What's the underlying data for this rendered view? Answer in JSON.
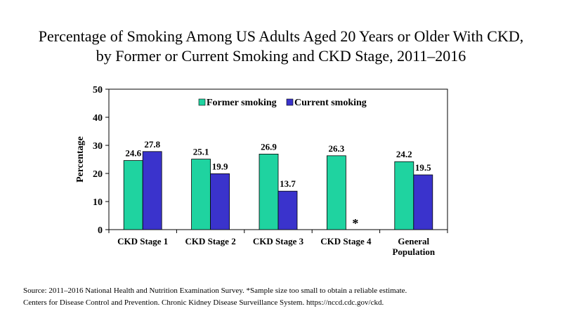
{
  "title": {
    "line1": "Percentage of Smoking Among US Adults Aged 20 Years or Older With CKD,",
    "line2": "by Former or Current Smoking and CKD Stage, 2011–2016"
  },
  "chart_data": {
    "type": "bar",
    "title": "Percentage of Smoking Among US Adults Aged 20 Years or Older With CKD, by Former or Current Smoking and CKD Stage, 2011–2016",
    "xlabel": "",
    "ylabel": "Percentage",
    "ylim": [
      0,
      50
    ],
    "yticks": [
      0,
      10,
      20,
      30,
      40,
      50
    ],
    "categories": [
      [
        "CKD Stage 1"
      ],
      [
        "CKD Stage 2"
      ],
      [
        "CKD Stage 3"
      ],
      [
        "CKD Stage 4"
      ],
      [
        "General",
        "Population"
      ]
    ],
    "series": [
      {
        "name": "Former smoking",
        "color": "#1fd3a0",
        "values": [
          24.6,
          25.1,
          26.9,
          26.3,
          24.2
        ],
        "labels": [
          "24.6",
          "25.1",
          "26.9",
          "26.3",
          "24.2"
        ]
      },
      {
        "name": "Current smoking",
        "color": "#3a33cc",
        "values": [
          27.8,
          19.9,
          13.7,
          null,
          19.5
        ],
        "labels": [
          "27.8",
          "19.9",
          "13.7",
          "*",
          "19.5"
        ]
      }
    ],
    "legend_position": "top-center",
    "grid": false
  },
  "source": {
    "line1": "Source: 2011–2016  National Health and Nutrition Examination Survey. *Sample size too small to obtain a reliable estimate.",
    "line2": "Centers for Disease Control and Prevention. Chronic Kidney Disease Surveillance System. https://nccd.cdc.gov/ckd."
  }
}
